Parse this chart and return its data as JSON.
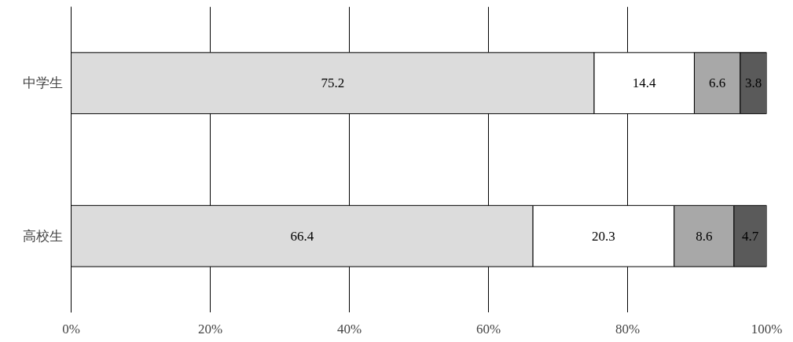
{
  "chart_data": {
    "type": "bar",
    "orientation": "horizontal",
    "stacked": true,
    "categories": [
      "中学生",
      "高校生"
    ],
    "series": [
      {
        "color": "#dcdcdc",
        "values": [
          75.2,
          66.4
        ]
      },
      {
        "color": "#ffffff",
        "values": [
          14.4,
          20.3
        ]
      },
      {
        "color": "#a8a8a8",
        "values": [
          6.6,
          8.6
        ]
      },
      {
        "color": "#5a5a5a",
        "values": [
          3.8,
          4.7
        ]
      }
    ],
    "xlim": [
      0,
      100
    ],
    "xticks": [
      {
        "value": 0,
        "label": "0%"
      },
      {
        "value": 20,
        "label": "20%"
      },
      {
        "value": 40,
        "label": "40%"
      },
      {
        "value": 60,
        "label": "60%"
      },
      {
        "value": 80,
        "label": "80%"
      },
      {
        "value": 100,
        "label": "100%"
      }
    ],
    "grid": "x",
    "data_labels": true
  }
}
